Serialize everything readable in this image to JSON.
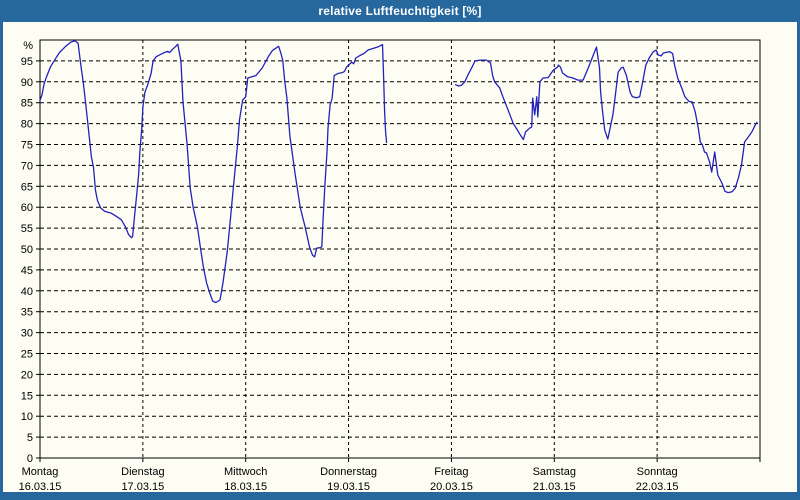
{
  "window": {
    "title": "relative Luftfeuchtigkeit [%]"
  },
  "colors": {
    "chrome": "#26679e",
    "background": "#fdfdf4",
    "grid": "#000000",
    "axis": "#000000",
    "line": "#2222bb",
    "title_text": "#ffffff"
  },
  "chart_data": {
    "type": "line",
    "title": "relative Luftfeuchtigkeit [%]",
    "y_unit_label": "%",
    "ylim": [
      0,
      100
    ],
    "y_ticks": [
      0,
      5,
      10,
      15,
      20,
      25,
      30,
      35,
      40,
      45,
      50,
      55,
      60,
      65,
      70,
      75,
      80,
      85,
      90,
      95
    ],
    "x_range_days": [
      0,
      7
    ],
    "grid": "dashed",
    "legend": "none",
    "days": [
      {
        "name": "Montag",
        "date": "16.03.15"
      },
      {
        "name": "Dienstag",
        "date": "17.03.15"
      },
      {
        "name": "Mittwoch",
        "date": "18.03.15"
      },
      {
        "name": "Donnerstag",
        "date": "19.03.15"
      },
      {
        "name": "Freitag",
        "date": "20.03.15"
      },
      {
        "name": "Samstag",
        "date": "21.03.15"
      },
      {
        "name": "Sonntag",
        "date": "22.03.15"
      }
    ],
    "series": [
      {
        "name": "relative Luftfeuchtigkeit",
        "unit": "%",
        "color": "#2222bb",
        "segments": [
          [
            [
              0.0,
              85.5
            ],
            [
              0.02,
              87.0
            ],
            [
              0.04,
              89.5
            ],
            [
              0.06,
              91.0
            ],
            [
              0.1,
              93.5
            ],
            [
              0.15,
              95.5
            ],
            [
              0.19,
              97.0
            ],
            [
              0.25,
              98.5
            ],
            [
              0.3,
              99.5
            ],
            [
              0.34,
              99.8
            ],
            [
              0.37,
              99.2
            ],
            [
              0.4,
              93.5
            ],
            [
              0.42,
              90.0
            ],
            [
              0.44,
              85.6
            ],
            [
              0.47,
              79.0
            ],
            [
              0.5,
              72.0
            ],
            [
              0.52,
              69.5
            ],
            [
              0.54,
              64.0
            ],
            [
              0.56,
              61.5
            ],
            [
              0.59,
              59.8
            ],
            [
              0.63,
              59.0
            ],
            [
              0.69,
              58.6
            ],
            [
              0.73,
              58.0
            ],
            [
              0.79,
              57.0
            ],
            [
              0.83,
              55.3
            ],
            [
              0.86,
              53.5
            ],
            [
              0.89,
              52.7
            ],
            [
              0.9,
              53.0
            ],
            [
              0.92,
              58.0
            ],
            [
              0.94,
              63.0
            ],
            [
              0.96,
              68.0
            ],
            [
              0.97,
              73.0
            ],
            [
              0.99,
              79.0
            ],
            [
              1.0,
              84.0
            ],
            [
              1.02,
              87.5
            ],
            [
              1.05,
              89.5
            ],
            [
              1.08,
              92.0
            ],
            [
              1.1,
              95.0
            ],
            [
              1.13,
              96.0
            ],
            [
              1.17,
              96.5
            ],
            [
              1.21,
              97.0
            ],
            [
              1.24,
              97.3
            ],
            [
              1.26,
              97.0
            ],
            [
              1.29,
              97.8
            ],
            [
              1.32,
              98.5
            ],
            [
              1.34,
              99.0
            ],
            [
              1.37,
              95.0
            ],
            [
              1.39,
              85.2
            ],
            [
              1.43,
              75.0
            ],
            [
              1.46,
              64.6
            ],
            [
              1.49,
              59.8
            ],
            [
              1.53,
              55.3
            ],
            [
              1.56,
              50.2
            ],
            [
              1.59,
              45.5
            ],
            [
              1.62,
              41.9
            ],
            [
              1.65,
              39.5
            ],
            [
              1.68,
              37.5
            ],
            [
              1.71,
              37.2
            ],
            [
              1.75,
              37.8
            ],
            [
              1.78,
              42.1
            ],
            [
              1.82,
              49.3
            ],
            [
              1.85,
              56.9
            ],
            [
              1.88,
              64.8
            ],
            [
              1.92,
              74.9
            ],
            [
              1.94,
              80.9
            ],
            [
              1.97,
              85.6
            ],
            [
              2.0,
              86.4
            ],
            [
              2.02,
              90.9
            ],
            [
              2.06,
              91.2
            ],
            [
              2.1,
              91.5
            ],
            [
              2.16,
              93.3
            ],
            [
              2.22,
              96.0
            ],
            [
              2.26,
              97.5
            ],
            [
              2.29,
              98.0
            ],
            [
              2.32,
              98.5
            ],
            [
              2.34,
              97.0
            ],
            [
              2.36,
              95.2
            ],
            [
              2.38,
              90.0
            ],
            [
              2.4,
              86.1
            ],
            [
              2.43,
              77.0
            ],
            [
              2.48,
              68.0
            ],
            [
              2.53,
              60.0
            ],
            [
              2.58,
              55.0
            ],
            [
              2.62,
              50.5
            ],
            [
              2.65,
              48.5
            ],
            [
              2.67,
              48.1
            ],
            [
              2.69,
              50.2
            ],
            [
              2.72,
              50.3
            ],
            [
              2.74,
              50.5
            ],
            [
              2.75,
              56.2
            ],
            [
              2.77,
              65.3
            ],
            [
              2.79,
              73.2
            ],
            [
              2.8,
              78.9
            ],
            [
              2.82,
              84.4
            ],
            [
              2.84,
              86.0
            ],
            [
              2.86,
              91.5
            ],
            [
              2.9,
              92.0
            ],
            [
              2.94,
              92.2
            ],
            [
              2.96,
              92.5
            ],
            [
              2.98,
              93.5
            ],
            [
              3.0,
              94.0
            ],
            [
              3.03,
              94.7
            ],
            [
              3.05,
              94.3
            ],
            [
              3.07,
              95.7
            ],
            [
              3.11,
              96.3
            ],
            [
              3.15,
              96.8
            ],
            [
              3.19,
              97.6
            ],
            [
              3.24,
              98.0
            ],
            [
              3.29,
              98.4
            ],
            [
              3.33,
              98.9
            ],
            [
              3.34,
              92.0
            ],
            [
              3.35,
              83.0
            ],
            [
              3.36,
              78.0
            ],
            [
              3.37,
              75.5
            ]
          ],
          [
            [
              4.04,
              89.3
            ],
            [
              4.07,
              89.0
            ],
            [
              4.1,
              89.2
            ],
            [
              4.13,
              90.0
            ],
            [
              4.16,
              91.6
            ],
            [
              4.2,
              93.5
            ],
            [
              4.23,
              95.0
            ],
            [
              4.28,
              95.2
            ],
            [
              4.34,
              95.2
            ],
            [
              4.38,
              94.5
            ],
            [
              4.4,
              91.5
            ],
            [
              4.42,
              90.0
            ],
            [
              4.47,
              88.5
            ],
            [
              4.5,
              86.4
            ],
            [
              4.55,
              83.3
            ],
            [
              4.6,
              80.1
            ],
            [
              4.64,
              78.5
            ],
            [
              4.67,
              77.3
            ],
            [
              4.7,
              76.2
            ],
            [
              4.72,
              78.0
            ],
            [
              4.76,
              78.9
            ],
            [
              4.78,
              79.2
            ],
            [
              4.79,
              86.1
            ],
            [
              4.81,
              82.1
            ],
            [
              4.83,
              86.4
            ],
            [
              4.84,
              81.6
            ],
            [
              4.86,
              90.0
            ],
            [
              4.89,
              90.9
            ],
            [
              4.94,
              91.0
            ],
            [
              4.99,
              92.8
            ],
            [
              5.03,
              93.5
            ],
            [
              5.04,
              94.0
            ],
            [
              5.06,
              93.5
            ],
            [
              5.08,
              92.1
            ],
            [
              5.13,
              91.2
            ],
            [
              5.18,
              90.9
            ],
            [
              5.23,
              90.4
            ],
            [
              5.28,
              90.4
            ],
            [
              5.33,
              93.3
            ],
            [
              5.36,
              95.2
            ],
            [
              5.41,
              98.3
            ],
            [
              5.44,
              93.3
            ],
            [
              5.45,
              87.6
            ],
            [
              5.47,
              82.8
            ],
            [
              5.49,
              78.5
            ],
            [
              5.52,
              76.3
            ],
            [
              5.57,
              82.1
            ],
            [
              5.59,
              86.1
            ],
            [
              5.62,
              92.3
            ],
            [
              5.65,
              93.3
            ],
            [
              5.67,
              93.5
            ],
            [
              5.7,
              91.6
            ],
            [
              5.74,
              87.3
            ],
            [
              5.76,
              86.4
            ],
            [
              5.8,
              86.2
            ],
            [
              5.83,
              86.4
            ],
            [
              5.86,
              90.0
            ],
            [
              5.89,
              94.0
            ],
            [
              5.93,
              96.0
            ],
            [
              5.96,
              97.1
            ],
            [
              5.99,
              97.6
            ],
            [
              6.01,
              96.4
            ],
            [
              6.04,
              96.2
            ],
            [
              6.06,
              96.9
            ],
            [
              6.1,
              97.1
            ],
            [
              6.12,
              97.2
            ],
            [
              6.15,
              96.8
            ],
            [
              6.17,
              94.0
            ],
            [
              6.2,
              90.9
            ],
            [
              6.24,
              88.5
            ],
            [
              6.27,
              86.4
            ],
            [
              6.31,
              85.3
            ],
            [
              6.34,
              85.2
            ],
            [
              6.37,
              82.8
            ],
            [
              6.4,
              78.9
            ],
            [
              6.42,
              75.6
            ],
            [
              6.44,
              74.9
            ],
            [
              6.46,
              73.2
            ],
            [
              6.48,
              73.0
            ],
            [
              6.51,
              70.8
            ],
            [
              6.53,
              68.4
            ],
            [
              6.56,
              73.2
            ],
            [
              6.59,
              67.7
            ],
            [
              6.63,
              65.8
            ],
            [
              6.66,
              63.8
            ],
            [
              6.69,
              63.5
            ],
            [
              6.73,
              63.7
            ],
            [
              6.76,
              64.6
            ],
            [
              6.79,
              67.0
            ],
            [
              6.82,
              70.1
            ],
            [
              6.85,
              75.6
            ],
            [
              6.88,
              76.6
            ],
            [
              6.92,
              78.0
            ],
            [
              6.95,
              79.5
            ],
            [
              6.97,
              80.3
            ]
          ]
        ]
      }
    ]
  }
}
